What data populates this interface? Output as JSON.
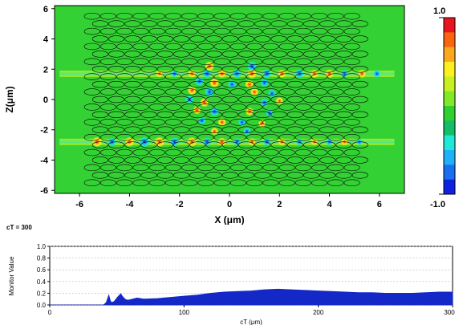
{
  "chart_data": [
    {
      "type": "heatmap",
      "title": "",
      "xlabel": "X (μm)",
      "ylabel": "Z(μm)",
      "xlim": [
        -7,
        7
      ],
      "ylim": [
        -6.2,
        6.2
      ],
      "x_ticks": [
        "-6",
        "-4",
        "-2",
        "0",
        "2",
        "4",
        "6"
      ],
      "x_tick_values": [
        -6,
        -4,
        -2,
        0,
        2,
        4,
        6
      ],
      "y_ticks": [
        "6",
        "4",
        "2",
        "0",
        "-2",
        "-4",
        "-6"
      ],
      "y_tick_values": [
        6,
        4,
        2,
        0,
        -2,
        -4,
        -6
      ],
      "background_color": "#33d133",
      "colorbar": {
        "max_label": "1.0",
        "min_label": "-1.0",
        "max": 1.0,
        "min": -1.0,
        "colors": [
          "#e8141e",
          "#f86410",
          "#fca81c",
          "#fcf020",
          "#c8f020",
          "#80ea28",
          "#30d030",
          "#14be68",
          "#20e8d8",
          "#20b0f8",
          "#1870f0",
          "#1020e0"
        ]
      },
      "lattice": {
        "x_range": [
          -5.5,
          5.5
        ],
        "z_range": [
          -5.5,
          5.5
        ],
        "row_spacing": 0.5,
        "column_spacing": 0.65
      },
      "waveguides": [
        {
          "z": 1.7,
          "x_range": [
            -6.8,
            6.6
          ]
        },
        {
          "z": -2.8,
          "x_range": [
            -6.8,
            6.6
          ]
        }
      ],
      "hot_spots": [
        {
          "x": -5.3,
          "z": -2.8,
          "v": 0.9
        },
        {
          "x": -4.7,
          "z": -2.8,
          "v": -0.6
        },
        {
          "x": -4.0,
          "z": -2.8,
          "v": 0.8
        },
        {
          "x": -3.4,
          "z": -2.8,
          "v": -0.9
        },
        {
          "x": -2.8,
          "z": -2.8,
          "v": 0.9
        },
        {
          "x": -2.2,
          "z": -2.8,
          "v": -0.7
        },
        {
          "x": -1.5,
          "z": -2.8,
          "v": 0.8
        },
        {
          "x": -0.9,
          "z": -2.8,
          "v": -0.6
        },
        {
          "x": -0.3,
          "z": -2.8,
          "v": 0.6
        },
        {
          "x": 0.3,
          "z": -2.8,
          "v": -0.5
        },
        {
          "x": 0.9,
          "z": -2.8,
          "v": 0.5
        },
        {
          "x": 1.5,
          "z": -2.8,
          "v": -0.5
        },
        {
          "x": 2.1,
          "z": -2.8,
          "v": 0.5
        },
        {
          "x": 2.8,
          "z": -2.8,
          "v": -0.4
        },
        {
          "x": 3.4,
          "z": -2.8,
          "v": 0.4
        },
        {
          "x": 4.0,
          "z": -2.8,
          "v": -0.4
        },
        {
          "x": 4.6,
          "z": -2.8,
          "v": 0.4
        },
        {
          "x": 5.2,
          "z": -2.8,
          "v": -0.3
        },
        {
          "x": -2.8,
          "z": 1.7,
          "v": 0.4
        },
        {
          "x": -2.2,
          "z": 1.7,
          "v": -0.4
        },
        {
          "x": -1.5,
          "z": 1.7,
          "v": 0.5
        },
        {
          "x": -0.9,
          "z": 1.7,
          "v": -0.7
        },
        {
          "x": -0.3,
          "z": 1.7,
          "v": 0.6
        },
        {
          "x": 0.3,
          "z": 1.7,
          "v": -0.6
        },
        {
          "x": 0.9,
          "z": 1.7,
          "v": 0.8
        },
        {
          "x": 1.5,
          "z": 1.7,
          "v": -0.7
        },
        {
          "x": 2.1,
          "z": 1.7,
          "v": 0.6
        },
        {
          "x": 2.8,
          "z": 1.7,
          "v": -0.7
        },
        {
          "x": 3.4,
          "z": 1.7,
          "v": 0.6
        },
        {
          "x": 4.0,
          "z": 1.7,
          "v": 0.7
        },
        {
          "x": 4.6,
          "z": 1.7,
          "v": -0.5
        },
        {
          "x": 5.3,
          "z": 1.7,
          "v": 0.6
        },
        {
          "x": 5.9,
          "z": 1.7,
          "v": -0.5
        },
        {
          "x": -0.8,
          "z": 2.2,
          "v": 0.8
        },
        {
          "x": 0.9,
          "z": 2.2,
          "v": -0.8
        },
        {
          "x": -1.2,
          "z": 1.2,
          "v": -0.7
        },
        {
          "x": -0.6,
          "z": 1.1,
          "v": 0.8
        },
        {
          "x": 0.1,
          "z": 1.0,
          "v": -0.6
        },
        {
          "x": 0.8,
          "z": 1.0,
          "v": 0.7
        },
        {
          "x": 1.4,
          "z": 1.1,
          "v": -0.6
        },
        {
          "x": -1.5,
          "z": 0.6,
          "v": 0.7
        },
        {
          "x": -0.8,
          "z": 0.5,
          "v": -0.8
        },
        {
          "x": 1.0,
          "z": 0.5,
          "v": 0.6
        },
        {
          "x": 1.7,
          "z": 0.4,
          "v": -0.5
        },
        {
          "x": -1.6,
          "z": 0.0,
          "v": -0.6
        },
        {
          "x": -1.0,
          "z": -0.2,
          "v": 0.7
        },
        {
          "x": 1.4,
          "z": -0.2,
          "v": -0.6
        },
        {
          "x": 2.0,
          "z": -0.1,
          "v": 0.5
        },
        {
          "x": -1.3,
          "z": -0.7,
          "v": 0.6
        },
        {
          "x": -0.6,
          "z": -0.8,
          "v": -0.7
        },
        {
          "x": 0.8,
          "z": -0.8,
          "v": 0.6
        },
        {
          "x": 1.6,
          "z": -0.9,
          "v": -0.5
        },
        {
          "x": -1.1,
          "z": -1.4,
          "v": -0.5
        },
        {
          "x": -0.3,
          "z": -1.5,
          "v": 0.6
        },
        {
          "x": 0.5,
          "z": -1.5,
          "v": -0.5
        },
        {
          "x": 1.3,
          "z": -1.6,
          "v": 0.5
        },
        {
          "x": -0.6,
          "z": -2.1,
          "v": 0.5
        },
        {
          "x": 0.7,
          "z": -2.1,
          "v": -0.5
        }
      ]
    },
    {
      "type": "area",
      "title": "",
      "xlabel": "cT (μm)",
      "ylabel": "Monitor Value",
      "xlim": [
        0,
        300
      ],
      "ylim": [
        0,
        1.0
      ],
      "x_ticks": [
        "0",
        "100",
        "200",
        "300"
      ],
      "x_tick_values": [
        0,
        100,
        200,
        300
      ],
      "y_ticks": [
        "0.0",
        "0.2",
        "0.4",
        "0.6",
        "0.8",
        "1.0"
      ],
      "y_tick_values": [
        0,
        0.2,
        0.4,
        0.6,
        0.8,
        1.0
      ],
      "grid": true,
      "color": "#1428c8",
      "series": [
        {
          "x": [
            0,
            40,
            42,
            44,
            45,
            46,
            48,
            50,
            52,
            53,
            54,
            56,
            58,
            60,
            65,
            70,
            80,
            90,
            100,
            110,
            120,
            130,
            140,
            150,
            160,
            170,
            180,
            190,
            200,
            210,
            220,
            230,
            240,
            250,
            260,
            270,
            280,
            290,
            300
          ],
          "values": [
            0,
            0,
            0.04,
            0.17,
            0.08,
            0.04,
            0.06,
            0.12,
            0.17,
            0.19,
            0.15,
            0.1,
            0.08,
            0.09,
            0.12,
            0.1,
            0.11,
            0.13,
            0.15,
            0.17,
            0.2,
            0.22,
            0.23,
            0.24,
            0.26,
            0.27,
            0.26,
            0.25,
            0.24,
            0.23,
            0.22,
            0.21,
            0.21,
            0.2,
            0.2,
            0.2,
            0.21,
            0.22,
            0.22
          ]
        }
      ]
    }
  ],
  "ct_label": "cT = 300"
}
